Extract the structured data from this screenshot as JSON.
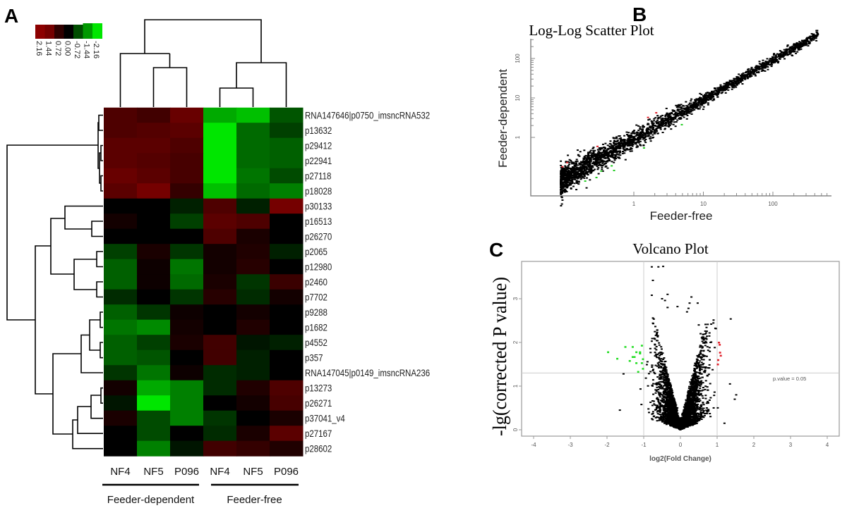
{
  "panels": {
    "a": "A",
    "b": "B",
    "c": "C"
  },
  "chart_data": [
    {
      "type": "heatmap",
      "title": "",
      "legend": {
        "labels": [
          "2.16",
          "1.44",
          "0.72",
          "0.00",
          "-0.72",
          "-1.44",
          "-2.16"
        ],
        "range": [
          -2.16,
          2.16
        ],
        "colors": {
          "high": "#8c0000",
          "mid": "#000000",
          "low": "#00e600"
        }
      },
      "columns": [
        "NF4",
        "NF5",
        "P096",
        "NF4",
        "NF5",
        "P096"
      ],
      "groups": [
        {
          "label": "Feeder-dependent",
          "columns": [
            0,
            1,
            2
          ]
        },
        {
          "label": "Feeder-free",
          "columns": [
            3,
            4,
            5
          ]
        }
      ],
      "rows": [
        "RNA147646|p0750_imsncRNA532",
        "p13632",
        "p29412",
        "p22941",
        "p27118",
        "p18028",
        "p30133",
        "p16513",
        "p26270",
        "p2065",
        "p12980",
        "p2460",
        "p7702",
        "p9288",
        "p1682",
        "p4552",
        "p357",
        "RNA147045|p0149_imsncRNA236",
        "p13273",
        "p26271",
        "p37041_v4",
        "p27167",
        "p28602"
      ],
      "values": [
        [
          1.2,
          1.0,
          1.6,
          -1.6,
          -1.8,
          -0.8
        ],
        [
          1.2,
          1.3,
          1.4,
          -2.16,
          -1.0,
          -0.6
        ],
        [
          1.4,
          1.4,
          1.2,
          -2.16,
          -1.0,
          -0.9
        ],
        [
          1.4,
          1.3,
          1.1,
          -2.16,
          -1.0,
          -0.9
        ],
        [
          1.6,
          1.4,
          1.1,
          -2.16,
          -1.1,
          -0.7
        ],
        [
          1.4,
          1.8,
          0.8,
          -1.8,
          -1.0,
          -1.2
        ],
        [
          0.0,
          0.0,
          -0.3,
          1.2,
          -0.3,
          1.8
        ],
        [
          0.3,
          0.0,
          -0.6,
          1.4,
          1.2,
          0.0
        ],
        [
          0.0,
          0.0,
          0.0,
          1.2,
          0.4,
          0.0
        ],
        [
          -0.6,
          0.4,
          -0.5,
          0.3,
          0.5,
          -0.3
        ],
        [
          -0.9,
          0.2,
          -1.1,
          0.3,
          0.6,
          0.0
        ],
        [
          -0.9,
          0.2,
          -1.0,
          0.4,
          -0.5,
          0.9
        ],
        [
          -0.4,
          0.0,
          -0.5,
          0.6,
          -0.4,
          0.3
        ],
        [
          -0.9,
          -0.5,
          0.2,
          0.0,
          0.3,
          0.0
        ],
        [
          -1.1,
          -1.3,
          0.3,
          0.0,
          0.5,
          0.0
        ],
        [
          -0.9,
          -0.6,
          0.4,
          1.0,
          -0.2,
          -0.3
        ],
        [
          -0.9,
          -0.8,
          0.0,
          1.0,
          -0.3,
          0.0
        ],
        [
          -0.5,
          -1.1,
          0.2,
          -0.4,
          -0.3,
          0.0
        ],
        [
          0.3,
          -1.6,
          -1.2,
          -0.4,
          0.5,
          1.2
        ],
        [
          -0.2,
          -2.16,
          -1.2,
          0.0,
          0.3,
          1.1
        ],
        [
          0.4,
          -0.7,
          -1.2,
          -0.5,
          0.0,
          0.4
        ],
        [
          0.0,
          -0.7,
          0.0,
          -0.4,
          0.4,
          1.4
        ],
        [
          0.0,
          -1.2,
          -0.2,
          1.0,
          0.8,
          0.5
        ]
      ]
    },
    {
      "type": "scatter",
      "title": "Log-Log Scatter Plot",
      "xlabel": "Feeder-free",
      "ylabel": "Feeder-dependent",
      "xscale": "log",
      "yscale": "log",
      "xlim": [
        0.033,
        700
      ],
      "ylim": [
        0.033,
        316
      ],
      "xticks": [
        "1",
        "10",
        "100"
      ],
      "yticks": [
        "1",
        "10",
        "100"
      ],
      "bulk": {
        "n": 2600,
        "color": "#000000",
        "log10_x_range": [
          -1.05,
          2.65
        ],
        "trend": "y≈x"
      },
      "up_points": {
        "color": "#e0202a",
        "x": [
          2.1,
          1.6,
          0.3,
          0.094,
          0.11
        ],
        "y": [
          4.2,
          3.2,
          0.59,
          0.18,
          0.23
        ]
      },
      "down_points": {
        "color": "#22cc22",
        "x": [
          4.9,
          1.4,
          0.52,
          0.29,
          0.2,
          0.34,
          0.48
        ],
        "y": [
          2.1,
          0.54,
          0.145,
          0.096,
          0.078,
          0.14,
          0.19
        ]
      }
    },
    {
      "type": "scatter",
      "title": "Volcano Plot",
      "xlabel": "log2(Fold Change)",
      "ylabel": "-lg(corrected P value)",
      "xlim": [
        -4.3,
        4.3
      ],
      "ylim": [
        -0.15,
        3.85
      ],
      "xticks": [
        "-4",
        "-3",
        "-2",
        "-1",
        "0",
        "1",
        "2",
        "3",
        "4"
      ],
      "yticks": [
        "0",
        "1",
        "2",
        "3"
      ],
      "threshold_label": "p.value = 0.05",
      "thresholds": {
        "y": 1.3,
        "x": [
          -1,
          1
        ]
      },
      "bulk": {
        "n": 3500,
        "color": "#000000"
      },
      "up_points": {
        "color": "#e0202a",
        "x": [
          1.05,
          1.07,
          1.08,
          1.1,
          1.03,
          1.02
        ],
        "y": [
          2.0,
          1.95,
          1.77,
          1.7,
          1.6,
          1.5
        ]
      },
      "down_points": {
        "color": "#22dd22",
        "x": [
          -1.97,
          -1.72,
          -1.5,
          -1.3,
          -1.2,
          -1.25,
          -1.3,
          -1.38,
          -1.2,
          -1.1,
          -1.05,
          -1.02,
          -1.05,
          -1.02,
          -1.15,
          -1.1
        ],
        "y": [
          1.78,
          1.63,
          1.9,
          1.9,
          1.78,
          1.67,
          1.67,
          1.58,
          1.53,
          1.75,
          1.93,
          1.62,
          1.53,
          1.4,
          1.33,
          1.78
        ]
      },
      "outliers": {
        "x": [
          -0.78,
          -0.6,
          -0.47,
          -0.75,
          -0.78,
          -0.35,
          -0.5,
          -0.42,
          0.3,
          0.25,
          0.47,
          0.18,
          -0.08,
          0.22,
          0.5,
          -0.35,
          0.55,
          0.62,
          0.82,
          1.35,
          1.52,
          1.2,
          -1.65,
          -1.55,
          1.48
        ],
        "y": [
          3.73,
          3.73,
          3.74,
          3.42,
          3.08,
          3.1,
          3.0,
          2.96,
          3.04,
          2.9,
          2.9,
          2.7,
          2.82,
          2.78,
          2.4,
          2.8,
          2.2,
          2.18,
          2.0,
          1.05,
          0.8,
          0.15,
          0.45,
          1.28,
          0.7
        ]
      }
    }
  ]
}
